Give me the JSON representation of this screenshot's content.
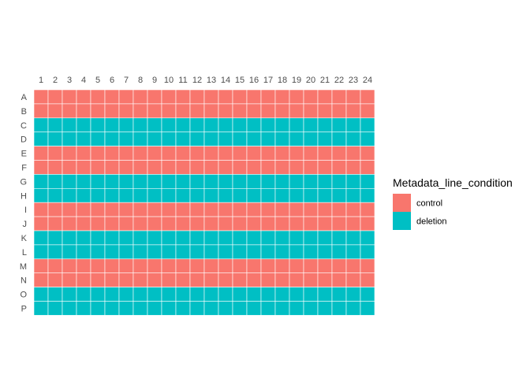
{
  "chart_data": {
    "type": "heatmap",
    "title": "",
    "xlabel": "",
    "ylabel": "",
    "x_ticks": [
      "1",
      "2",
      "3",
      "4",
      "5",
      "6",
      "7",
      "8",
      "9",
      "10",
      "11",
      "12",
      "13",
      "14",
      "15",
      "16",
      "17",
      "18",
      "19",
      "20",
      "21",
      "22",
      "23",
      "24"
    ],
    "y_ticks": [
      "A",
      "B",
      "C",
      "D",
      "E",
      "F",
      "G",
      "H",
      "I",
      "J",
      "K",
      "L",
      "M",
      "N",
      "O",
      "P"
    ],
    "row_condition": [
      "control",
      "control",
      "deletion",
      "deletion",
      "control",
      "control",
      "deletion",
      "deletion",
      "control",
      "control",
      "deletion",
      "deletion",
      "control",
      "control",
      "deletion",
      "deletion"
    ],
    "legend": {
      "title": "Metadata_line_condition",
      "placement": "right",
      "items": [
        {
          "label": "control",
          "color": "#F8766D"
        },
        {
          "label": "deletion",
          "color": "#00BFC4"
        }
      ]
    },
    "grid": false
  }
}
